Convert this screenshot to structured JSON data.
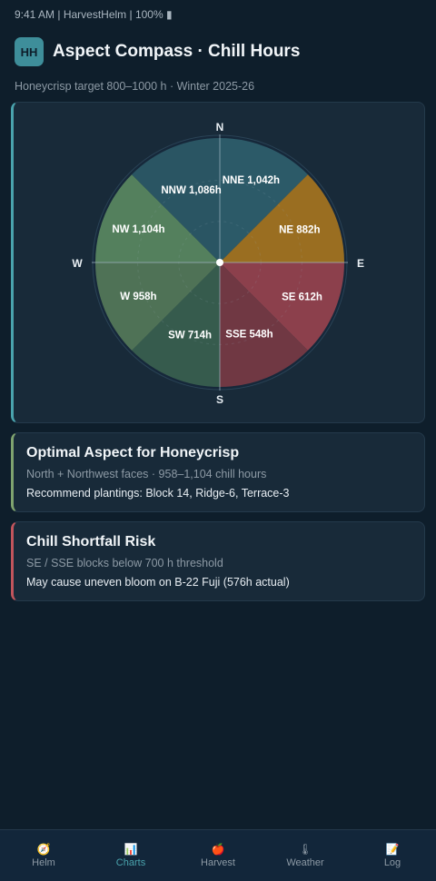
{
  "status_bar": {
    "text": "9:41 AM | HarvestHelm | 100% ▮"
  },
  "header": {
    "logo_text": "HH",
    "title": "Aspect Compass · Chill Hours",
    "subtitle": "Honeycrisp target 800–1000 h · Winter 2025-26"
  },
  "chart_data": {
    "type": "pie",
    "subtype": "polar-area compass",
    "compass_labels": {
      "n": "N",
      "e": "E",
      "s": "S",
      "w": "W"
    },
    "unit": "h",
    "sectors": [
      {
        "label": "NNE",
        "value": 1042,
        "text": "NNE 1,042h",
        "color": "#2f5f6e"
      },
      {
        "label": "NE",
        "value": 882,
        "text": "NE 882h",
        "color": "#a9761f"
      },
      {
        "label": "SE",
        "value": 612,
        "text": "SE 612h",
        "color": "#99424f"
      },
      {
        "label": "SSE",
        "value": 548,
        "text": "SSE 548h",
        "color": "#7a3a45"
      },
      {
        "label": "SW",
        "value": 714,
        "text": "SW 714h",
        "color": "#3a6050"
      },
      {
        "label": "W",
        "value": 958,
        "text": "W 958h",
        "color": "#557a5a"
      },
      {
        "label": "NW",
        "value": 1104,
        "text": "NW 1,104h",
        "color": "#5b8a62"
      },
      {
        "label": "NNW",
        "value": 1086,
        "text": "NNW 1,086h",
        "color": "#2c5a68"
      }
    ]
  },
  "optimal_card": {
    "title": "Optimal Aspect for Honeycrisp",
    "subtitle": "North + Northwest faces · 958–1,104 chill hours",
    "body": "Recommend plantings: Block 14, Ridge-6, Terrace-3"
  },
  "risk_card": {
    "title": "Chill Shortfall Risk",
    "subtitle": "SE / SSE blocks below 700 h threshold",
    "body": "May cause uneven bloom on B-22 Fuji (576h actual)"
  },
  "tabs": [
    {
      "label": "Helm",
      "icon": "🧭",
      "icon_name": "compass-icon"
    },
    {
      "label": "Charts",
      "icon": "📊",
      "icon_name": "chart-icon",
      "active": true
    },
    {
      "label": "Harvest",
      "icon": "🍎",
      "icon_name": "apple-icon"
    },
    {
      "label": "Weather",
      "icon": "🌡",
      "icon_name": "thermometer-icon"
    },
    {
      "label": "Log",
      "icon": "📝",
      "icon_name": "notepad-icon"
    }
  ],
  "colors": {
    "accent": "#4aa3ad",
    "good": "#7fa36f",
    "risk": "#c2555c"
  }
}
